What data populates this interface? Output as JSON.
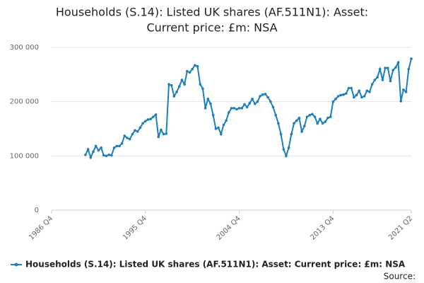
{
  "chart_data": {
    "type": "line",
    "title": "Households (S.14): Listed UK shares (AF.511N1): Asset:",
    "subtitle": "Current price: £m: NSA",
    "source": "Source:",
    "categories": [
      "1986 Q4",
      null,
      null,
      null,
      null,
      null,
      null,
      null,
      null,
      null,
      null,
      null,
      null,
      null,
      null,
      null,
      null,
      null,
      null,
      null,
      null,
      null,
      null,
      null,
      null,
      null,
      null,
      null,
      null,
      null,
      null,
      null,
      null,
      null,
      null,
      null,
      "1995 Q4",
      null,
      null,
      null,
      null,
      null,
      null,
      null,
      null,
      null,
      null,
      null,
      null,
      null,
      null,
      null,
      null,
      null,
      null,
      null,
      null,
      null,
      null,
      null,
      null,
      null,
      null,
      null,
      null,
      null,
      null,
      null,
      null,
      null,
      null,
      null,
      "2004 Q4",
      null,
      null,
      null,
      null,
      null,
      null,
      null,
      null,
      null,
      null,
      null,
      null,
      null,
      null,
      null,
      null,
      null,
      null,
      null,
      null,
      null,
      null,
      null,
      null,
      null,
      null,
      null,
      null,
      null,
      null,
      null,
      null,
      null,
      null,
      null,
      "2013 Q4",
      null,
      null,
      null,
      null,
      null,
      null,
      null,
      null,
      null,
      null,
      null,
      null,
      null,
      null,
      null,
      null,
      null,
      null,
      null,
      null,
      null,
      null,
      null,
      null,
      null,
      null,
      null,
      null,
      null,
      "2021 Q2"
    ],
    "series": [
      {
        "name": "Households (S.14): Listed UK shares (AF.511N1): Asset: Current price: £m: NSA",
        "color": "#1a7fbf",
        "values": [
          null,
          null,
          null,
          null,
          null,
          null,
          null,
          null,
          null,
          null,
          null,
          null,
          null,
          102000,
          112000,
          97000,
          108000,
          118000,
          110000,
          115000,
          101000,
          100000,
          102000,
          101000,
          115000,
          118000,
          118000,
          123000,
          137000,
          133000,
          131000,
          140000,
          147000,
          145000,
          152000,
          160000,
          164000,
          167000,
          168000,
          172000,
          176000,
          135000,
          148000,
          140000,
          141000,
          232000,
          230000,
          210000,
          218000,
          228000,
          240000,
          232000,
          256000,
          254000,
          260000,
          267000,
          265000,
          232000,
          224000,
          188000,
          205000,
          196000,
          175000,
          150000,
          152000,
          140000,
          157000,
          165000,
          180000,
          188000,
          188000,
          186000,
          188000,
          188000,
          195000,
          190000,
          197000,
          205000,
          196000,
          200000,
          210000,
          213000,
          214000,
          208000,
          200000,
          190000,
          175000,
          160000,
          140000,
          112000,
          100000,
          115000,
          140000,
          160000,
          165000,
          170000,
          145000,
          155000,
          172000,
          175000,
          177000,
          172000,
          160000,
          168000,
          160000,
          163000,
          170000,
          172000,
          200000,
          205000,
          210000,
          212000,
          213000,
          215000,
          225000,
          225000,
          208000,
          212000,
          220000,
          208000,
          210000,
          220000,
          218000,
          232000,
          240000,
          245000,
          260000,
          240000,
          262000,
          262000,
          238000,
          258000,
          263000,
          272000,
          201000,
          222000,
          218000,
          260000,
          279000
        ]
      }
    ],
    "ylim": [
      0,
      300000
    ],
    "yticks": [
      0,
      {
        "value": 100000,
        "label": "100 000"
      },
      {
        "value": 200000,
        "label": "200 000"
      },
      {
        "value": 300000,
        "label": "300 000"
      }
    ],
    "grid": true
  }
}
